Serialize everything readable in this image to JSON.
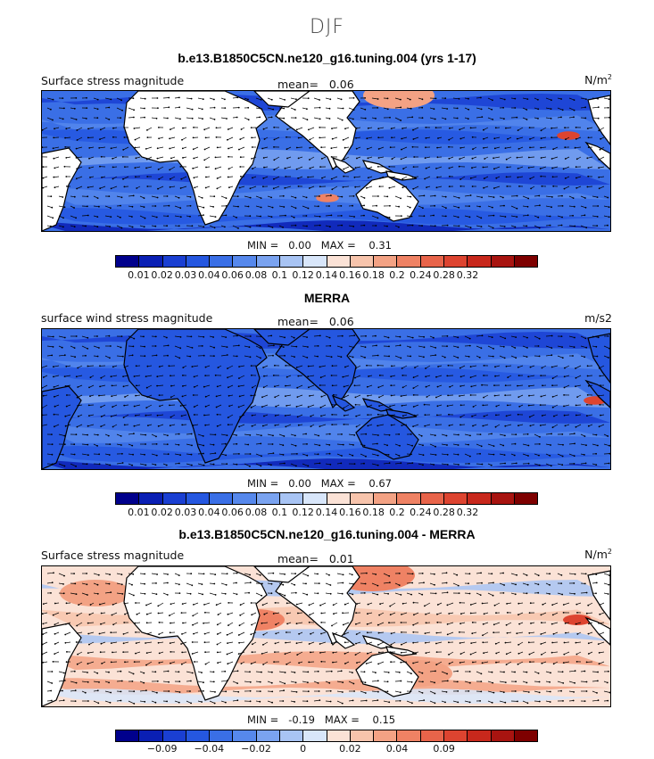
{
  "season": "DJF",
  "panels": [
    {
      "title": "b.e13.B1850C5CN.ne120_g16.tuning.004 (yrs 1-17)",
      "left_label": "Surface stress magnitude",
      "mean_label": "mean=",
      "mean_value": "0.06",
      "units": "N/m",
      "units_sup": "2",
      "min_label": "MIN =",
      "min_value": "0.00",
      "max_label": "MAX =",
      "max_value": "0.31"
    },
    {
      "title": "MERRA",
      "left_label": "surface wind stress magnitude",
      "mean_label": "mean=",
      "mean_value": "0.06",
      "units": "m/s2",
      "units_sup": "",
      "min_label": "MIN =",
      "min_value": "0.00",
      "max_label": "MAX =",
      "max_value": "0.67"
    },
    {
      "title": "b.e13.B1850C5CN.ne120_g16.tuning.004 - MERRA",
      "left_label": "Surface stress magnitude",
      "mean_label": "mean=",
      "mean_value": "0.01",
      "units": "N/m",
      "units_sup": "2",
      "min_label": "MIN =",
      "min_value": "-0.19",
      "max_label": "MAX =",
      "max_value": "0.15"
    }
  ],
  "colorbars": {
    "magnitude": {
      "colors": [
        "#00008c",
        "#0a1fb4",
        "#1a3fd2",
        "#2557e0",
        "#3a6fe6",
        "#5688ec",
        "#7aa3f0",
        "#a8c4f4",
        "#d8e6fa",
        "#fbe2d6",
        "#f7c4ac",
        "#f3a284",
        "#ef8264",
        "#e8644a",
        "#dd4430",
        "#c8281c",
        "#a81410",
        "#7e0000"
      ],
      "tick_labels": [
        "0.01",
        "0.02",
        "0.03",
        "0.04",
        "0.06",
        "0.08",
        "0.1",
        "0.12",
        "0.14",
        "0.16",
        "0.18",
        "0.2",
        "0.24",
        "0.28",
        "0.32"
      ],
      "tick_positions": [
        1,
        2,
        3,
        4,
        5,
        6,
        7,
        8,
        9,
        10,
        11,
        12,
        13,
        14,
        15
      ]
    },
    "difference": {
      "colors": [
        "#00008c",
        "#0a1fb4",
        "#1a3fd2",
        "#2557e0",
        "#3a6fe6",
        "#5688ec",
        "#7aa3f0",
        "#a8c4f4",
        "#d8e6fa",
        "#fbe2d6",
        "#f7c4ac",
        "#f3a284",
        "#ef8264",
        "#e8644a",
        "#dd4430",
        "#c8281c",
        "#a81410",
        "#7e0000"
      ],
      "tick_labels": [
        "-0.09",
        "-0.04",
        "-0.02",
        "0",
        "0.02",
        "0.04",
        "0.09"
      ],
      "tick_positions": [
        2,
        4,
        6,
        8,
        10,
        12,
        14
      ]
    }
  },
  "chart_data": [
    {
      "type": "heatmap",
      "title": "b.e13.B1850C5CN.ne120_g16.tuning.004 (yrs 1-17)",
      "variable": "Surface stress magnitude",
      "units": "N/m2",
      "mean": 0.06,
      "min": 0.0,
      "max": 0.31,
      "contour_levels": [
        0.01,
        0.02,
        0.03,
        0.04,
        0.06,
        0.08,
        0.1,
        0.12,
        0.14,
        0.16,
        0.18,
        0.2,
        0.24,
        0.28,
        0.32
      ]
    },
    {
      "type": "heatmap",
      "title": "MERRA",
      "variable": "surface wind stress magnitude",
      "units": "m/s2",
      "mean": 0.06,
      "min": 0.0,
      "max": 0.67,
      "contour_levels": [
        0.01,
        0.02,
        0.03,
        0.04,
        0.06,
        0.08,
        0.1,
        0.12,
        0.14,
        0.16,
        0.18,
        0.2,
        0.24,
        0.28,
        0.32
      ]
    },
    {
      "type": "heatmap",
      "title": "b.e13.B1850C5CN.ne120_g16.tuning.004 - MERRA",
      "variable": "Surface stress magnitude",
      "units": "N/m2",
      "mean": 0.01,
      "min": -0.19,
      "max": 0.15,
      "contour_levels_labeled": [
        -0.09,
        -0.04,
        -0.02,
        0,
        0.02,
        0.04,
        0.09
      ]
    }
  ]
}
